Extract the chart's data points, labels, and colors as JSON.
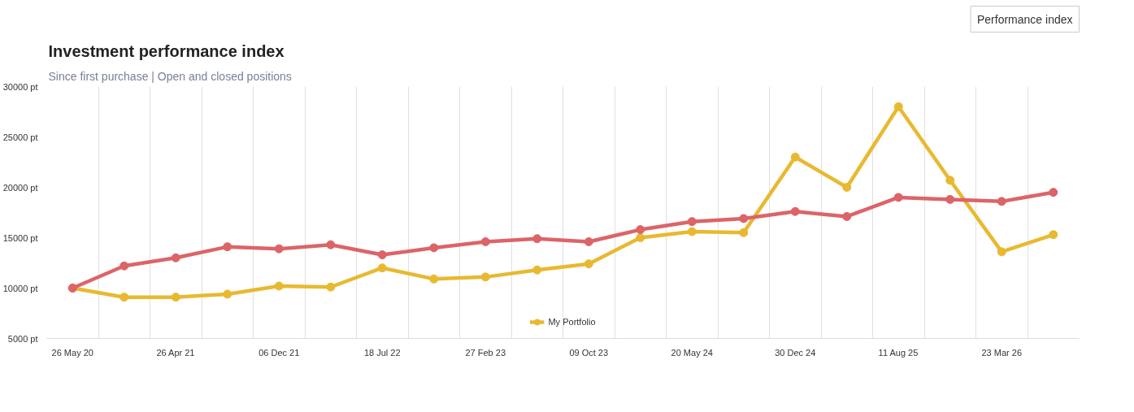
{
  "chart_data": {
    "type": "line",
    "title": "Investment performance index",
    "subtitle": "Since first purchase | Open and closed positions",
    "annotations": [
      "Performance index"
    ],
    "categories": [
      "26 May 20",
      null,
      "26 Apr 21",
      null,
      "06 Dec 21",
      null,
      "18 Jul 22",
      null,
      "27 Feb 23",
      null,
      "09 Oct 23",
      null,
      "20 May 24",
      null,
      "30 Dec 24",
      null,
      "11 Aug 25",
      null,
      "23 Mar 26",
      null
    ],
    "series": [
      {
        "name": "My Portfolio",
        "color": "#e8b930",
        "values": [
          10000,
          9100,
          9100,
          9400,
          10200,
          10100,
          12000,
          10900,
          11100,
          11800,
          12400,
          15000,
          15600,
          15500,
          23000,
          20000,
          28000,
          20700,
          13600,
          15300
        ]
      },
      {
        "color": "#dc6468",
        "values": [
          10000,
          12200,
          13000,
          14100,
          13900,
          14300,
          13300,
          14000,
          14600,
          14900,
          14600,
          15800,
          16600,
          16900,
          17600,
          17100,
          19000,
          18800,
          18600,
          19500
        ]
      }
    ],
    "ylim": [
      5000,
      30000
    ],
    "yticks": [
      {
        "value": 5000,
        "label": "5000 pt"
      },
      {
        "value": 10000,
        "label": "10000 pt"
      },
      {
        "value": 15000,
        "label": "15000 pt"
      },
      {
        "value": 20000,
        "label": "20000 pt"
      },
      {
        "value": 25000,
        "label": "25000 pt"
      },
      {
        "value": 30000,
        "label": "30000 pt"
      }
    ],
    "grid": "x",
    "legend": "bottom",
    "marker": "circle",
    "line_style": "solid"
  }
}
